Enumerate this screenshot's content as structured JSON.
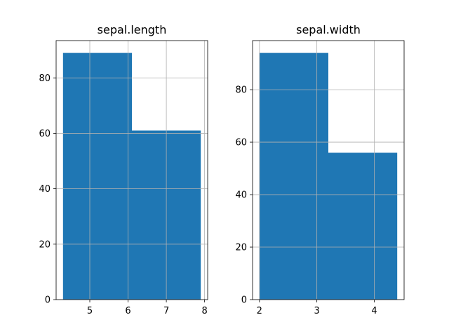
{
  "chart_data": [
    {
      "type": "bar",
      "title": "sepal.length",
      "xlabel": "",
      "ylabel": "",
      "bins": [
        {
          "x0": 4.3,
          "x1": 6.1,
          "value": 89
        },
        {
          "x0": 6.1,
          "x1": 7.9,
          "value": 61
        }
      ],
      "xlim": [
        4.12,
        8.08
      ],
      "ylim": [
        0,
        93.45
      ],
      "xticks": [
        5,
        6,
        7,
        8
      ],
      "yticks": [
        0,
        20,
        40,
        60,
        80
      ],
      "grid": true,
      "bar_color": "#1f77b4"
    },
    {
      "type": "bar",
      "title": "sepal.width",
      "xlabel": "",
      "ylabel": "",
      "bins": [
        {
          "x0": 2.0,
          "x1": 3.2,
          "value": 94
        },
        {
          "x0": 3.2,
          "x1": 4.4,
          "value": 56
        }
      ],
      "xlim": [
        1.88,
        4.52
      ],
      "ylim": [
        0,
        98.7
      ],
      "xticks": [
        2,
        3,
        4
      ],
      "yticks": [
        0,
        20,
        40,
        60,
        80
      ],
      "grid": true,
      "bar_color": "#1f77b4"
    }
  ]
}
